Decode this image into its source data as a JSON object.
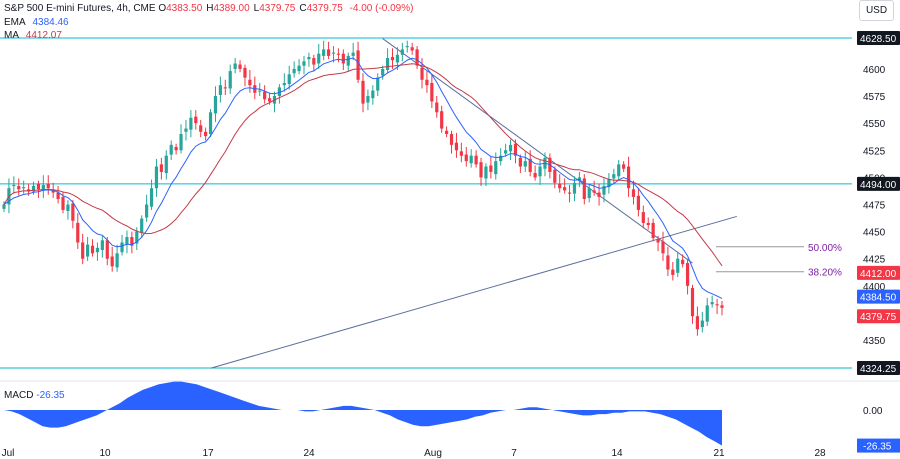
{
  "header": {
    "symbol_line": "S&P 500 E-mini Futures, 4h, CME",
    "ohlc": [
      {
        "k": "O",
        "v": "4383.50"
      },
      {
        "k": "H",
        "v": "4389.00"
      },
      {
        "k": "L",
        "v": "4379.75"
      },
      {
        "k": "C",
        "v": "4379.75"
      }
    ],
    "change": "-4.00 (-0.09%)",
    "ema_label": "EMA",
    "ema_value": "4384.46",
    "ma_label": "MA",
    "ma_value": "4412.07",
    "currency": "USD"
  },
  "macd": {
    "label": "MACD",
    "value": "-26.35",
    "axis_zero": "0.00",
    "axis_badge": "-26.35"
  },
  "colors": {
    "up": "#26a69a",
    "down": "#f23645",
    "ema": "#2962ff",
    "ma": "#c43a4a",
    "level": "#00bcd4",
    "trend": "#5b6f9e",
    "macd": "#2962ff",
    "fib": "#7b1fa2"
  },
  "chart_data": {
    "type": "candlestick",
    "ylim": [
      4320,
      4635
    ],
    "y_ticks": [
      4350,
      4375,
      4400,
      4425,
      4450,
      4475,
      4500,
      4525,
      4550,
      4575,
      4600
    ],
    "x_ticks": [
      "Jul",
      "10",
      "17",
      "24",
      "Aug",
      "7",
      "14",
      "21",
      "28"
    ],
    "closes": [
      4475,
      4490,
      4493,
      4489,
      4491,
      4487,
      4492,
      4489,
      4493,
      4490,
      4486,
      4480,
      4470,
      4475,
      4460,
      4440,
      4425,
      4438,
      4430,
      4435,
      4442,
      4425,
      4418,
      4430,
      4440,
      4445,
      4437,
      4450,
      4462,
      4475,
      4490,
      4510,
      4505,
      4520,
      4530,
      4525,
      4540,
      4545,
      4555,
      4550,
      4542,
      4538,
      4560,
      4575,
      4585,
      4582,
      4598,
      4605,
      4600,
      4592,
      4585,
      4578,
      4580,
      4572,
      4570,
      4575,
      4583,
      4587,
      4595,
      4600,
      4603,
      4607,
      4611,
      4604,
      4614,
      4618,
      4612,
      4615,
      4613,
      4605,
      4612,
      4615,
      4590,
      4568,
      4575,
      4580,
      4592,
      4600,
      4610,
      4608,
      4613,
      4618,
      4621,
      4617,
      4603,
      4590,
      4585,
      4570,
      4560,
      4545,
      4540,
      4530,
      4525,
      4520,
      4515,
      4520,
      4512,
      4500,
      4510,
      4505,
      4515,
      4520,
      4525,
      4530,
      4520,
      4510,
      4515,
      4505,
      4500,
      4510,
      4518,
      4505,
      4495,
      4490,
      4488,
      4485,
      4495,
      4500,
      4480,
      4490,
      4486,
      4482,
      4492,
      4498,
      4503,
      4512,
      4508,
      4490,
      4482,
      4470,
      4458,
      4456,
      4444,
      4440,
      4430,
      4415,
      4410,
      4425,
      4420,
      4400,
      4372,
      4360,
      4368,
      4382,
      4385,
      4382,
      4379.75
    ],
    "ema": {
      "name": "EMA",
      "value": 4384.46
    },
    "ma": {
      "name": "MA",
      "value": 4412.07
    },
    "horizontal_levels": [
      4628.5,
      4494.0,
      4324.25
    ],
    "fib_levels": [
      {
        "label": "50.00%",
        "value": 4436
      },
      {
        "label": "38.20%",
        "value": 4413
      }
    ],
    "price_badges": [
      {
        "label": "4628.50",
        "kind": "level"
      },
      {
        "label": "4494.00",
        "kind": "level"
      },
      {
        "label": "4412.00",
        "kind": "down"
      },
      {
        "label": "4384.50",
        "kind": "ema"
      },
      {
        "label": "4379.75",
        "kind": "down"
      },
      {
        "label": "4324.25",
        "kind": "level"
      }
    ],
    "trendlines": [
      {
        "from": [
          77,
          4628
        ],
        "to": [
          140,
          4421
        ]
      },
      {
        "from": [
          42,
          4324
        ],
        "to": [
          149,
          4464
        ]
      }
    ],
    "macd_values": [
      0,
      -1,
      -3,
      -6,
      -9,
      -12,
      -13,
      -13,
      -12,
      -10,
      -8,
      -6,
      -4,
      -1,
      2,
      5,
      9,
      12,
      15,
      17,
      19,
      20,
      21,
      21,
      20,
      19,
      17,
      15,
      13,
      11,
      9,
      7,
      5,
      3,
      2,
      1,
      0,
      0,
      0,
      -1,
      -1,
      0,
      1,
      2,
      3,
      3,
      2,
      1,
      0,
      -2,
      -4,
      -7,
      -9,
      -11,
      -12,
      -12,
      -11,
      -10,
      -9,
      -8,
      -7,
      -5,
      -4,
      -2,
      -1,
      0,
      0,
      1,
      2,
      2,
      1,
      0,
      -1,
      -2,
      -3,
      -4,
      -4,
      -3,
      -3,
      -2,
      -2,
      -1,
      -1,
      -1,
      -2,
      -3,
      -5,
      -7,
      -10,
      -13,
      -16,
      -20,
      -23,
      -26.35
    ]
  }
}
